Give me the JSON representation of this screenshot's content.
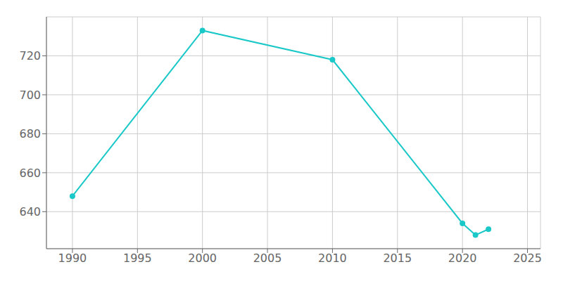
{
  "chart_data": {
    "type": "line",
    "x": [
      1990,
      2000,
      2010,
      2020,
      2021,
      2022
    ],
    "series": [
      {
        "color": "#1ac8c8",
        "values": [
          648,
          733,
          718,
          634,
          628,
          631
        ],
        "marker": "circle"
      }
    ],
    "xlim": [
      1988,
      2026
    ],
    "ylim": [
      621,
      740
    ],
    "xticks": [
      1990,
      1995,
      2000,
      2005,
      2010,
      2015,
      2020,
      2025
    ],
    "yticks": [
      640,
      660,
      680,
      700,
      720
    ],
    "grid": true
  }
}
